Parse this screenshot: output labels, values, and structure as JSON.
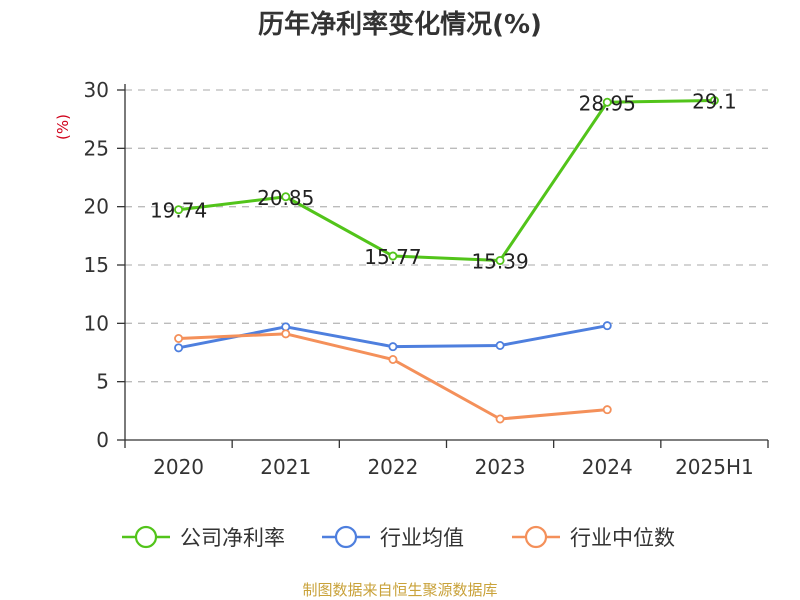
{
  "chart_data": {
    "type": "line",
    "title": "历年净利率变化情况(%)",
    "ylabel": "(%)",
    "xlabel": "",
    "categories": [
      "2020",
      "2021",
      "2022",
      "2023",
      "2024",
      "2025H1"
    ],
    "ylim": [
      0,
      30
    ],
    "yticks": [
      0,
      5,
      10,
      15,
      20,
      25,
      30
    ],
    "grid": "horizontal-dashed",
    "legend_position": "bottom",
    "series": [
      {
        "name": "公司净利率",
        "color": "#52c41a",
        "values": [
          19.74,
          20.85,
          15.77,
          15.39,
          28.95,
          29.1
        ],
        "data_labels": [
          "19.74",
          "20.85",
          "15.77",
          "15.39",
          "28.95",
          "29.1"
        ]
      },
      {
        "name": "行业均值",
        "color": "#4e7fde",
        "values": [
          7.9,
          9.7,
          8.0,
          8.1,
          9.8,
          null
        ]
      },
      {
        "name": "行业中位数",
        "color": "#f4905a",
        "values": [
          8.7,
          9.1,
          6.9,
          1.8,
          2.6,
          null
        ]
      }
    ]
  },
  "source_text": "制图数据来自恒生聚源数据库",
  "colors": {
    "source": "#c9a23a",
    "ylabel": "#d0021b",
    "axis": "#333333",
    "grid": "#bbbbbb"
  }
}
